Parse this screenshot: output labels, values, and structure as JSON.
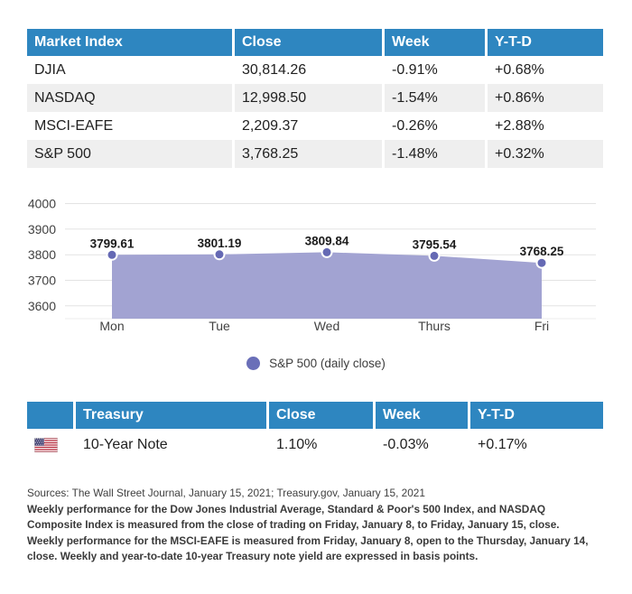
{
  "colors": {
    "header_blue": "#2e86c0",
    "stripe_gray": "#efefef",
    "area_purple": "#a2a3d2",
    "point_purple": "#6569b4",
    "legend_dot_purple": "#6a6fb8"
  },
  "market_table": {
    "headers": [
      "Market Index",
      "Close",
      "Week",
      "Y-T-D"
    ],
    "rows": [
      [
        "DJIA",
        "30,814.26",
        "-0.91%",
        "+0.68%"
      ],
      [
        "NASDAQ",
        "12,998.50",
        "-1.54%",
        "+0.86%"
      ],
      [
        "MSCI-EAFE",
        "2,209.37",
        "-0.26%",
        "+2.88%"
      ],
      [
        "S&P 500",
        "3,768.25",
        "-1.48%",
        "+0.32%"
      ]
    ]
  },
  "chart_data": {
    "type": "area",
    "title": "",
    "xlabel": "",
    "ylabel": "",
    "categories": [
      "Mon",
      "Tue",
      "Wed",
      "Thurs",
      "Fri"
    ],
    "series": [
      {
        "name": "S&P 500 (daily close)",
        "values": [
          3799.61,
          3801.19,
          3809.84,
          3795.54,
          3768.25
        ]
      }
    ],
    "point_labels": [
      "3799.61",
      "3801.19",
      "3809.84",
      "3795.54",
      "3768.25"
    ],
    "y_ticks": [
      4000,
      3900,
      3800,
      3700,
      3600
    ],
    "ylim": [
      3550,
      4090
    ],
    "grid": true,
    "legend_position": "bottom",
    "colors": {
      "area": "#a2a3d2",
      "point": "#6569b4",
      "point_border": "#ffffff",
      "grid": "#e3e3e3",
      "baseline": "#ececec",
      "tick_text": "#424242",
      "label_text": "#1c1c1c"
    }
  },
  "treasury_table": {
    "headers": [
      "",
      "Treasury",
      "Close",
      "Week",
      "Y-T-D"
    ],
    "rows": [
      [
        "us-flag-icon",
        "10-Year Note",
        "1.10%",
        "-0.03%",
        "+0.17%"
      ]
    ]
  },
  "footnotes": {
    "lines": [
      "Sources: The Wall Street Journal, January 15, 2021; Treasury.gov, January 15, 2021",
      "Weekly performance for the Dow Jones Industrial Average, Standard & Poor's 500 Index, and NASDAQ",
      "Composite Index is measured from the close of trading on Friday, January 8, to Friday, January 15, close.",
      "Weekly performance for the MSCI-EAFE is measured from Friday, January 8, open to the Thursday, January 14,",
      "close. Weekly and year-to-date 10-year Treasury note yield are expressed in basis points."
    ]
  }
}
